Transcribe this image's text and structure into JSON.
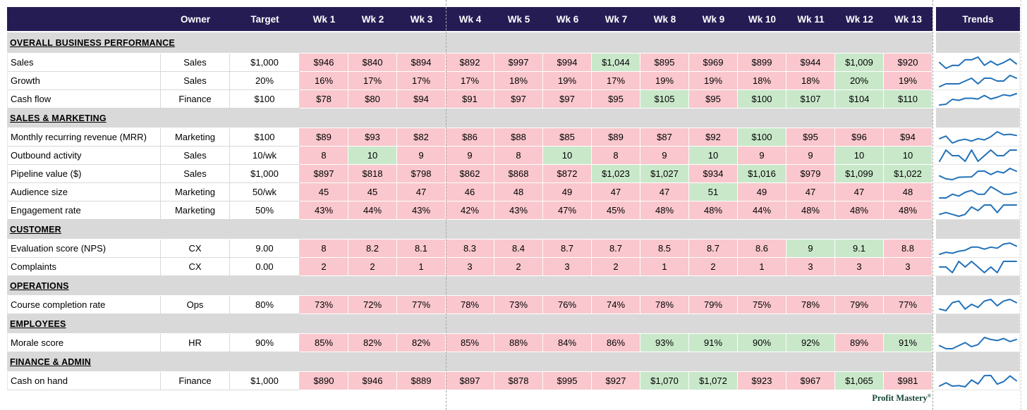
{
  "header": {
    "name_col": "",
    "owner": "Owner",
    "target": "Target",
    "weeks": [
      "Wk 1",
      "Wk 2",
      "Wk 3",
      "Wk 4",
      "Wk 5",
      "Wk 6",
      "Wk 7",
      "Wk 8",
      "Wk 9",
      "Wk 10",
      "Wk 11",
      "Wk 12",
      "Wk 13"
    ],
    "trends": "Trends"
  },
  "colors": {
    "header_bg": "#261c54",
    "header_text": "#ffffff",
    "section_bg": "#d9d9d9",
    "below_target": "#f9c7cd",
    "on_target": "#c9e8ca",
    "sparkline": "#2372b9",
    "brand_text": "#17463a"
  },
  "brand": {
    "name": "Profit Mastery",
    "mark": "®"
  },
  "rows": [
    {
      "type": "section",
      "label": "OVERALL BUSINESS PERFORMANCE",
      "tall": true
    },
    {
      "type": "metric",
      "label": "Sales",
      "owner": "Sales",
      "target": "$1,000",
      "values": [
        "$946",
        "$840",
        "$894",
        "$892",
        "$997",
        "$994",
        "$1,044",
        "$895",
        "$969",
        "$899",
        "$944",
        "$1,009",
        "$920"
      ],
      "status": [
        "b",
        "b",
        "b",
        "b",
        "b",
        "b",
        "g",
        "b",
        "b",
        "b",
        "b",
        "g",
        "b"
      ],
      "nums": [
        946,
        840,
        894,
        892,
        997,
        994,
        1044,
        895,
        969,
        899,
        944,
        1009,
        920
      ]
    },
    {
      "type": "metric",
      "label": "Growth",
      "owner": "Sales",
      "target": "20%",
      "values": [
        "16%",
        "17%",
        "17%",
        "17%",
        "18%",
        "19%",
        "17%",
        "19%",
        "19%",
        "18%",
        "18%",
        "20%",
        "19%"
      ],
      "status": [
        "b",
        "b",
        "b",
        "b",
        "b",
        "b",
        "b",
        "b",
        "b",
        "b",
        "b",
        "g",
        "b"
      ],
      "nums": [
        16,
        17,
        17,
        17,
        18,
        19,
        17,
        19,
        19,
        18,
        18,
        20,
        19
      ]
    },
    {
      "type": "metric",
      "label": "Cash flow",
      "owner": "Finance",
      "target": "$100",
      "values": [
        "$78",
        "$80",
        "$94",
        "$91",
        "$97",
        "$97",
        "$95",
        "$105",
        "$95",
        "$100",
        "$107",
        "$104",
        "$110"
      ],
      "status": [
        "b",
        "b",
        "b",
        "b",
        "b",
        "b",
        "b",
        "g",
        "b",
        "g",
        "g",
        "g",
        "g"
      ],
      "nums": [
        78,
        80,
        94,
        91,
        97,
        97,
        95,
        105,
        95,
        100,
        107,
        104,
        110
      ]
    },
    {
      "type": "section",
      "label": "SALES & MARKETING"
    },
    {
      "type": "metric",
      "label": "Monthly recurring revenue (MRR)",
      "owner": "Marketing",
      "target": "$100",
      "values": [
        "$89",
        "$93",
        "$82",
        "$86",
        "$88",
        "$85",
        "$89",
        "$87",
        "$92",
        "$100",
        "$95",
        "$96",
        "$94"
      ],
      "status": [
        "b",
        "b",
        "b",
        "b",
        "b",
        "b",
        "b",
        "b",
        "b",
        "g",
        "b",
        "b",
        "b"
      ],
      "nums": [
        89,
        93,
        82,
        86,
        88,
        85,
        89,
        87,
        92,
        100,
        95,
        96,
        94
      ]
    },
    {
      "type": "metric",
      "label": "Outbound activity",
      "owner": "Sales",
      "target": "10/wk",
      "values": [
        "8",
        "10",
        "9",
        "9",
        "8",
        "10",
        "8",
        "9",
        "10",
        "9",
        "9",
        "10",
        "10"
      ],
      "status": [
        "b",
        "g",
        "b",
        "b",
        "b",
        "g",
        "b",
        "b",
        "g",
        "b",
        "b",
        "g",
        "g"
      ],
      "nums": [
        8,
        10,
        9,
        9,
        8,
        10,
        8,
        9,
        10,
        9,
        9,
        10,
        10
      ]
    },
    {
      "type": "metric",
      "label": "Pipeline value ($)",
      "owner": "Sales",
      "target": "$1,000",
      "values": [
        "$897",
        "$818",
        "$798",
        "$862",
        "$868",
        "$872",
        "$1,023",
        "$1,027",
        "$934",
        "$1,016",
        "$979",
        "$1,099",
        "$1,022"
      ],
      "status": [
        "b",
        "b",
        "b",
        "b",
        "b",
        "b",
        "g",
        "g",
        "b",
        "g",
        "b",
        "g",
        "g"
      ],
      "nums": [
        897,
        818,
        798,
        862,
        868,
        872,
        1023,
        1027,
        934,
        1016,
        979,
        1099,
        1022
      ]
    },
    {
      "type": "metric",
      "label": "Audience size",
      "owner": "Marketing",
      "target": "50/wk",
      "values": [
        "45",
        "45",
        "47",
        "46",
        "48",
        "49",
        "47",
        "47",
        "51",
        "49",
        "47",
        "47",
        "48"
      ],
      "status": [
        "b",
        "b",
        "b",
        "b",
        "b",
        "b",
        "b",
        "b",
        "g",
        "b",
        "b",
        "b",
        "b"
      ],
      "nums": [
        45,
        45,
        47,
        46,
        48,
        49,
        47,
        47,
        51,
        49,
        47,
        47,
        48
      ]
    },
    {
      "type": "metric",
      "label": "Engagement rate",
      "owner": "Marketing",
      "target": "50%",
      "values": [
        "43%",
        "44%",
        "43%",
        "42%",
        "43%",
        "47%",
        "45%",
        "48%",
        "48%",
        "44%",
        "48%",
        "48%",
        "48%"
      ],
      "status": [
        "b",
        "b",
        "b",
        "b",
        "b",
        "b",
        "b",
        "b",
        "b",
        "b",
        "b",
        "b",
        "b"
      ],
      "nums": [
        43,
        44,
        43,
        42,
        43,
        47,
        45,
        48,
        48,
        44,
        48,
        48,
        48
      ]
    },
    {
      "type": "section",
      "label": "CUSTOMER"
    },
    {
      "type": "metric",
      "label": "Evaluation score (NPS)",
      "owner": "CX",
      "target": "9.00",
      "values": [
        "8",
        "8.2",
        "8.1",
        "8.3",
        "8.4",
        "8.7",
        "8.7",
        "8.5",
        "8.7",
        "8.6",
        "9",
        "9.1",
        "8.8"
      ],
      "status": [
        "b",
        "b",
        "b",
        "b",
        "b",
        "b",
        "b",
        "b",
        "b",
        "b",
        "g",
        "g",
        "b"
      ],
      "nums": [
        8,
        8.2,
        8.1,
        8.3,
        8.4,
        8.7,
        8.7,
        8.5,
        8.7,
        8.6,
        9,
        9.1,
        8.8
      ]
    },
    {
      "type": "metric",
      "label": "Complaints",
      "owner": "CX",
      "target": "0.00",
      "values": [
        "2",
        "2",
        "1",
        "3",
        "2",
        "3",
        "2",
        "1",
        "2",
        "1",
        "3",
        "3",
        "3"
      ],
      "status": [
        "b",
        "b",
        "b",
        "b",
        "b",
        "b",
        "b",
        "b",
        "b",
        "b",
        "b",
        "b",
        "b"
      ],
      "nums": [
        2,
        2,
        1,
        3,
        2,
        3,
        2,
        1,
        2,
        1,
        3,
        3,
        3
      ]
    },
    {
      "type": "section",
      "label": "OPERATIONS"
    },
    {
      "type": "metric",
      "label": "Course completion rate",
      "owner": "Ops",
      "target": "80%",
      "values": [
        "73%",
        "72%",
        "77%",
        "78%",
        "73%",
        "76%",
        "74%",
        "78%",
        "79%",
        "75%",
        "78%",
        "79%",
        "77%"
      ],
      "status": [
        "b",
        "b",
        "b",
        "b",
        "b",
        "b",
        "b",
        "b",
        "b",
        "b",
        "b",
        "b",
        "b"
      ],
      "nums": [
        73,
        72,
        77,
        78,
        73,
        76,
        74,
        78,
        79,
        75,
        78,
        79,
        77
      ]
    },
    {
      "type": "section",
      "label": "EMPLOYEES"
    },
    {
      "type": "metric",
      "label": "Morale score",
      "owner": "HR",
      "target": "90%",
      "values": [
        "85%",
        "82%",
        "82%",
        "85%",
        "88%",
        "84%",
        "86%",
        "93%",
        "91%",
        "90%",
        "92%",
        "89%",
        "91%"
      ],
      "status": [
        "b",
        "b",
        "b",
        "b",
        "b",
        "b",
        "b",
        "g",
        "g",
        "g",
        "g",
        "b",
        "g"
      ],
      "nums": [
        85,
        82,
        82,
        85,
        88,
        84,
        86,
        93,
        91,
        90,
        92,
        89,
        91
      ]
    },
    {
      "type": "section",
      "label": "FINANCE & ADMIN"
    },
    {
      "type": "metric",
      "label": "Cash on hand",
      "owner": "Finance",
      "target": "$1,000",
      "values": [
        "$890",
        "$946",
        "$889",
        "$897",
        "$878",
        "$995",
        "$927",
        "$1,070",
        "$1,072",
        "$923",
        "$967",
        "$1,065",
        "$981"
      ],
      "status": [
        "b",
        "b",
        "b",
        "b",
        "b",
        "b",
        "b",
        "g",
        "g",
        "b",
        "b",
        "g",
        "b"
      ],
      "nums": [
        890,
        946,
        889,
        897,
        878,
        995,
        927,
        1070,
        1072,
        923,
        967,
        1065,
        981
      ]
    }
  ]
}
